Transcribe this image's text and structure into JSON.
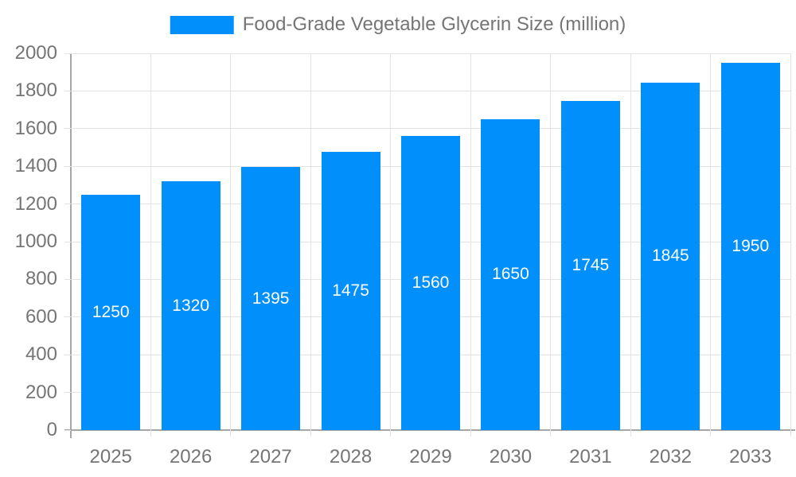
{
  "legend": {
    "label": "Food-Grade Vegetable Glycerin Size (million)"
  },
  "chart_data": {
    "type": "bar",
    "title": "Food-Grade Vegetable Glycerin Size (million)",
    "categories": [
      "2025",
      "2026",
      "2027",
      "2028",
      "2029",
      "2030",
      "2031",
      "2032",
      "2033"
    ],
    "series": [
      {
        "name": "Food-Grade Vegetable Glycerin Size (million)",
        "values": [
          1250,
          1320,
          1395,
          1475,
          1560,
          1650,
          1745,
          1845,
          1950
        ]
      }
    ],
    "bar_value_labels": [
      "1250",
      "1320",
      "1395",
      "1475",
      "1560",
      "1650",
      "1745",
      "1845",
      "1950"
    ],
    "xlabel": "",
    "ylabel": "",
    "ylim": [
      0,
      2000
    ],
    "ytick_step": 200,
    "yticks": [
      0,
      200,
      400,
      600,
      800,
      1000,
      1200,
      1400,
      1600,
      1800,
      2000
    ],
    "grid": true,
    "legend_position": "top-center",
    "colors": {
      "bar": "#008ffb",
      "bar_label_text": "#ffffff",
      "axis_text": "#757575",
      "gridline": "#e3e3e3",
      "axis_line": "#a6a6a6",
      "background": "#ffffff"
    }
  }
}
